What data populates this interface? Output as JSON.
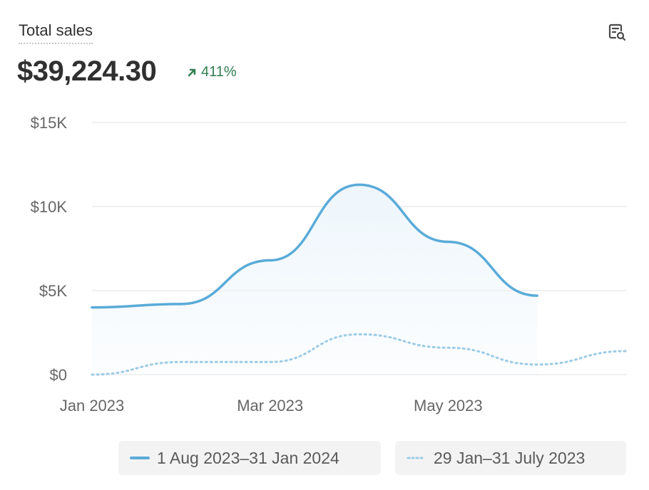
{
  "card": {
    "title": "Total sales",
    "total_value": "$39,224.30",
    "change_pct": "411%",
    "icon": "search-report-icon"
  },
  "colors": {
    "primary_series": "#5aabd8",
    "comparison_series": "#9ccbe6",
    "area_fill": "#eef6fc",
    "change_positive": "#2e7d4f",
    "grid": "#e6e6e6"
  },
  "chart_data": {
    "type": "line",
    "title": "Total sales",
    "xlabel": "",
    "ylabel": "",
    "ylim": [
      0,
      15000
    ],
    "yticks": [
      {
        "value": 0,
        "label": "$0"
      },
      {
        "value": 5000,
        "label": "$5K"
      },
      {
        "value": 10000,
        "label": "$10K"
      },
      {
        "value": 15000,
        "label": "$15K"
      }
    ],
    "x_tick_labels": [
      {
        "index": 0,
        "label": "Jan 2023"
      },
      {
        "index": 2,
        "label": "Mar 2023"
      },
      {
        "index": 4,
        "label": "May 2023"
      }
    ],
    "x_count": 7,
    "grid": true,
    "legend_position": "bottom",
    "series": [
      {
        "name": "1 Aug 2023–31 Jan 2024",
        "style": "solid",
        "values": [
          4000,
          4200,
          6800,
          11300,
          7900,
          4700
        ]
      },
      {
        "name": "29 Jan–31 July 2023",
        "style": "dotted",
        "values": [
          0,
          750,
          750,
          2400,
          1600,
          600,
          1400
        ]
      }
    ]
  }
}
